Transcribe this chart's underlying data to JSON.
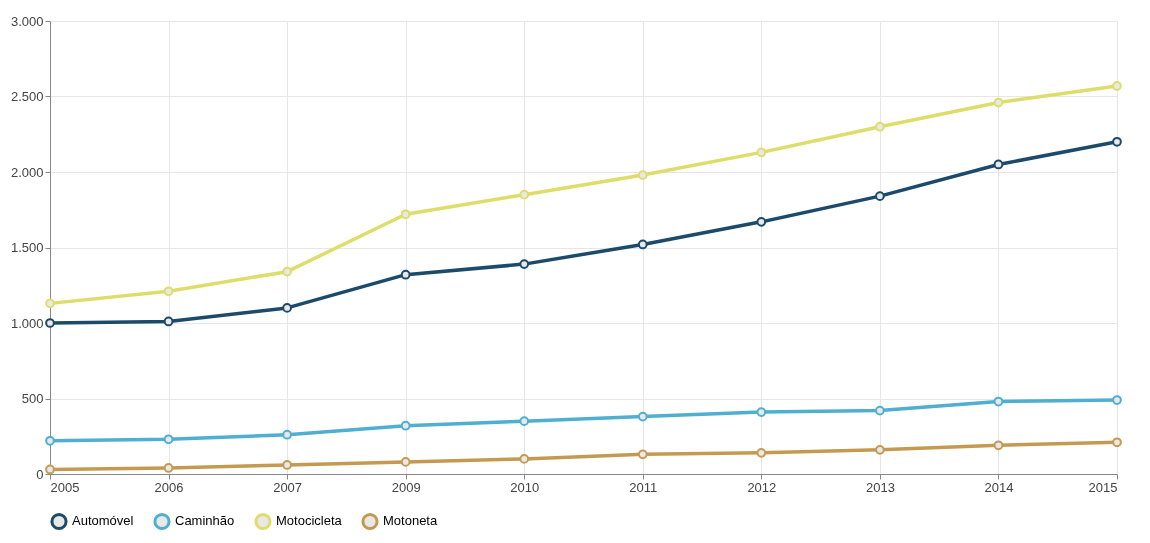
{
  "chart_data": {
    "type": "line",
    "categories": [
      "2005",
      "2006",
      "2007",
      "2009",
      "2010",
      "2011",
      "2012",
      "2013",
      "2014",
      "2015"
    ],
    "series": [
      {
        "name": "Automóvel",
        "color": "#1b4a6b",
        "values": [
          1000,
          1010,
          1100,
          1320,
          1390,
          1520,
          1670,
          1840,
          2050,
          2200
        ]
      },
      {
        "name": "Caminhão",
        "color": "#4eafd0",
        "values": [
          220,
          230,
          260,
          320,
          350,
          380,
          410,
          420,
          480,
          490
        ]
      },
      {
        "name": "Motocicleta",
        "color": "#dedd6a",
        "values": [
          1130,
          1210,
          1340,
          1720,
          1850,
          1980,
          2130,
          2300,
          2460,
          2570
        ]
      },
      {
        "name": "Motoneta",
        "color": "#c49a50",
        "values": [
          30,
          40,
          60,
          80,
          100,
          130,
          140,
          160,
          190,
          210
        ]
      }
    ],
    "ylim": [
      0,
      3000
    ],
    "yticks": [
      0,
      500,
      {
        "value": 1000,
        "label": "1.000"
      },
      {
        "value": 1500,
        "label": "1.500"
      },
      {
        "value": 2000,
        "label": "2.000"
      },
      {
        "value": 2500,
        "label": "2.500"
      },
      {
        "value": 3000,
        "label": "3.000"
      }
    ],
    "grid": true,
    "legend": "bottom",
    "marker": "circle",
    "line_style": "solid"
  }
}
